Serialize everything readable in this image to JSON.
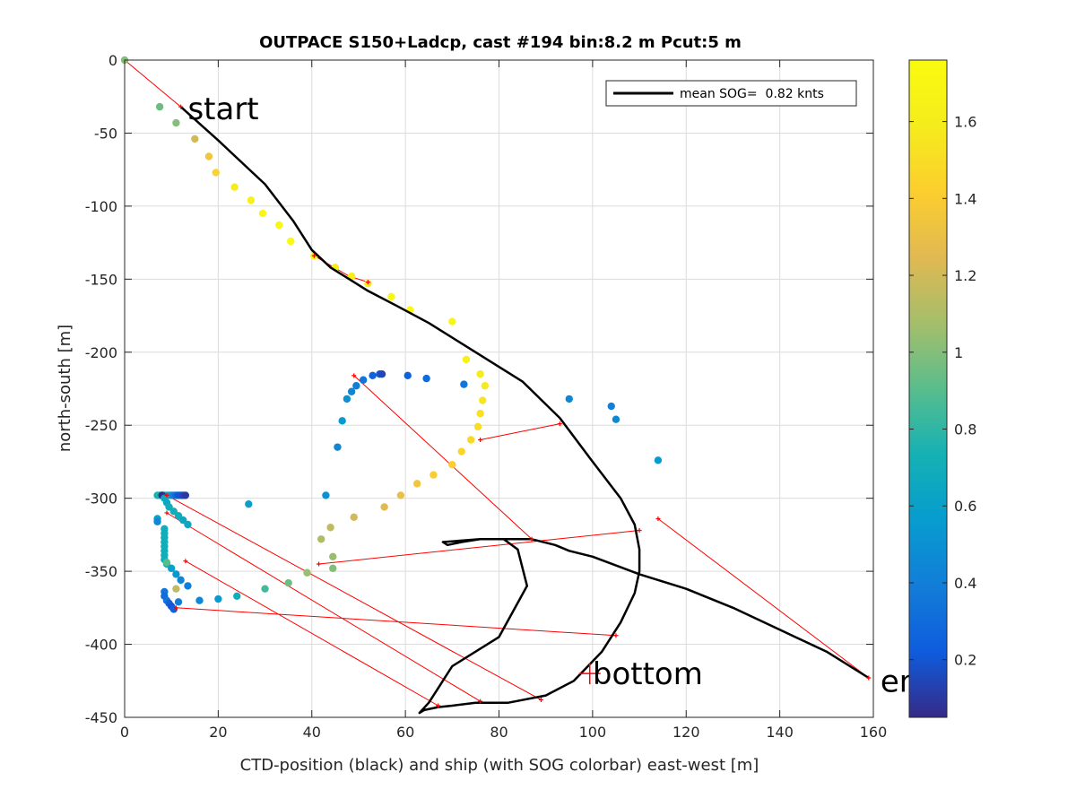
{
  "chart_data": {
    "type": "scatter",
    "title": "OUTPACE S150+Ladcp, cast #194 bin:8.2 m  Pcut:5 m",
    "xlabel": "CTD-position (black) and ship (with SOG colorbar) east-west [m]",
    "ylabel": "north-south [m]",
    "xlim": [
      0,
      160
    ],
    "ylim": [
      -450,
      0
    ],
    "xticks": [
      0,
      20,
      40,
      60,
      80,
      100,
      120,
      140,
      160
    ],
    "yticks": [
      0,
      -50,
      -100,
      -150,
      -200,
      -250,
      -300,
      -350,
      -400,
      -450
    ],
    "grid": true,
    "legend": {
      "position": "top-right",
      "entries": [
        "mean SOG=  0.82 knts"
      ]
    },
    "colorbar": {
      "label": "",
      "range": [
        0.05,
        1.76
      ],
      "ticks": [
        0.2,
        0.4,
        0.6,
        0.8,
        1,
        1.2,
        1.4,
        1.6
      ],
      "colormap": "parula"
    },
    "annotations": [
      {
        "text": "start",
        "x": 13.5,
        "y": -33
      },
      {
        "text": "bottom",
        "x": 100,
        "y": -420
      },
      {
        "text": "end",
        "x": 161.5,
        "y": -425
      }
    ],
    "series": [
      {
        "name": "mean SOG=  0.82 knts",
        "type": "line",
        "color": "#000000",
        "x": [
          12,
          20,
          30,
          36,
          40,
          44,
          48,
          52,
          58,
          65,
          75,
          85,
          93,
          100,
          106,
          109,
          110,
          110,
          109,
          106,
          102,
          96,
          90,
          82,
          75,
          70,
          67,
          64,
          63,
          65,
          67,
          70,
          80,
          86,
          84,
          81,
          76,
          72,
          69,
          68,
          76,
          87,
          92,
          95,
          100,
          110,
          120,
          130,
          140,
          150,
          159
        ],
        "y": [
          -32,
          -55,
          -85,
          -110,
          -130,
          -142,
          -150,
          -158,
          -168,
          -180,
          -200,
          -220,
          -245,
          -275,
          -300,
          -318,
          -335,
          -350,
          -365,
          -385,
          -405,
          -425,
          -435,
          -440,
          -440,
          -442,
          -443,
          -445,
          -447,
          -440,
          -430,
          -415,
          -395,
          -360,
          -335,
          -328,
          -328,
          -330,
          -332,
          -330,
          -328,
          -328,
          -332,
          -336,
          -340,
          -352,
          -362,
          -375,
          -390,
          -405,
          -423
        ]
      },
      {
        "name": "",
        "type": "line",
        "color": "#ff0000",
        "x": [
          0,
          12,
          null,
          40.5,
          48,
          52,
          null,
          76,
          93,
          null,
          49,
          87,
          null,
          114,
          159,
          null,
          41.5,
          110,
          null,
          9,
          89,
          null,
          9,
          76,
          null,
          13,
          67,
          null,
          11,
          105
        ],
        "y": [
          0,
          -32,
          null,
          -134,
          -148,
          -152,
          null,
          -260,
          -249,
          null,
          -216,
          -328,
          null,
          -314,
          -423,
          null,
          -345,
          -322,
          null,
          -298,
          -438,
          null,
          -310,
          -439,
          null,
          -343,
          -442,
          null,
          -375,
          -394
        ]
      },
      {
        "name": "",
        "type": "scatter",
        "values_are": "SOG [knts]",
        "x": [
          0,
          7.5,
          11,
          15,
          18,
          19.5,
          23.5,
          27,
          29.5,
          33,
          35.5,
          40.5,
          45,
          48.5,
          52,
          57,
          61,
          70,
          73,
          76,
          77,
          76.5,
          76,
          75.5,
          74,
          72,
          70,
          66,
          62.5,
          59,
          55.5,
          49,
          44,
          42,
          44.5,
          44.5,
          45.5,
          46.5,
          47.5,
          48.5,
          49.5,
          51,
          53,
          54.5,
          55,
          60.5,
          64.5,
          72.5,
          95,
          104,
          105,
          114,
          43,
          26.5,
          7,
          7,
          7,
          7.5,
          8,
          8.5,
          9,
          9.5,
          10,
          10.5,
          11,
          11.5,
          12,
          12.5,
          13,
          8,
          8.5,
          9,
          9.5,
          10.5,
          11.5,
          12.5,
          13.5,
          8.5,
          8.5,
          8.5,
          8.5,
          8.5,
          8.5,
          8.5,
          8.5,
          9,
          10,
          11,
          12,
          13.5,
          8.5,
          8.5,
          9,
          9.5,
          10,
          10.5,
          11.5,
          16,
          20,
          24,
          30,
          35,
          39,
          11,
          9
        ],
        "y": [
          0,
          -32,
          -43,
          -54,
          -66,
          -77,
          -87,
          -96,
          -105,
          -113,
          -124,
          -134,
          -142,
          -148,
          -153,
          -162,
          -171,
          -179,
          -205,
          -215,
          -223,
          -233,
          -242,
          -251,
          -260,
          -268,
          -277,
          -284,
          -290,
          -298,
          -306,
          -313,
          -320,
          -328,
          -340,
          -348,
          -265,
          -247,
          -232,
          -227,
          -223,
          -219,
          -216,
          -215,
          -215,
          -216,
          -218,
          -222,
          -232,
          -237,
          -246,
          -274,
          -298,
          -304,
          -314,
          -316,
          -298,
          -298,
          -298,
          -298,
          -298,
          -298,
          -298,
          -298,
          -298,
          -298,
          -298,
          -298,
          -298,
          -298,
          -300,
          -303,
          -306,
          -309,
          -312,
          -315,
          -318,
          -321,
          -324,
          -327,
          -330,
          -333,
          -336,
          -339,
          -342,
          -345,
          -348,
          -352,
          -356,
          -360,
          -364,
          -367,
          -370,
          -372,
          -374,
          -376,
          -371,
          -370,
          -369,
          -367,
          -362,
          -358,
          -351,
          -362,
          -344
        ],
        "sog": [
          1.0,
          0.95,
          1.0,
          1.2,
          1.35,
          1.45,
          1.6,
          1.65,
          1.7,
          1.72,
          1.75,
          1.7,
          1.6,
          1.62,
          1.66,
          1.7,
          1.75,
          1.72,
          1.65,
          1.6,
          1.58,
          1.55,
          1.52,
          1.5,
          1.48,
          1.45,
          1.42,
          1.4,
          1.35,
          1.3,
          1.25,
          1.2,
          1.15,
          1.1,
          1.05,
          1.0,
          0.45,
          0.55,
          0.5,
          0.45,
          0.4,
          0.35,
          0.25,
          0.2,
          0.15,
          0.25,
          0.3,
          0.35,
          0.45,
          0.4,
          0.45,
          0.55,
          0.5,
          0.6,
          0.6,
          0.45,
          0.75,
          0.75,
          0.7,
          0.7,
          0.65,
          0.6,
          0.5,
          0.4,
          0.3,
          0.2,
          0.2,
          0.15,
          0.1,
          0.05,
          0.65,
          0.65,
          0.7,
          0.7,
          0.7,
          0.65,
          0.65,
          0.7,
          0.7,
          0.7,
          0.7,
          0.7,
          0.7,
          0.7,
          0.7,
          0.65,
          0.6,
          0.55,
          0.45,
          0.4,
          0.35,
          0.3,
          0.35,
          0.25,
          0.2,
          0.25,
          0.4,
          0.45,
          0.55,
          0.7,
          0.85,
          0.95,
          1.05,
          1.15,
          0.9,
          0.8,
          0.95
        ]
      },
      {
        "name": "",
        "type": "markers",
        "color": "#ff0000",
        "x": [
          12,
          40.5,
          52,
          76,
          93,
          49,
          87,
          114,
          159,
          41.5,
          110,
          9,
          89,
          9,
          76,
          13,
          67,
          11,
          105
        ],
        "y": [
          -32,
          -134,
          -152,
          -260,
          -249,
          -216,
          -328,
          -314,
          -423,
          -345,
          -322,
          -298,
          -438,
          -310,
          -439,
          -343,
          -442,
          -375,
          -394
        ]
      }
    ]
  }
}
